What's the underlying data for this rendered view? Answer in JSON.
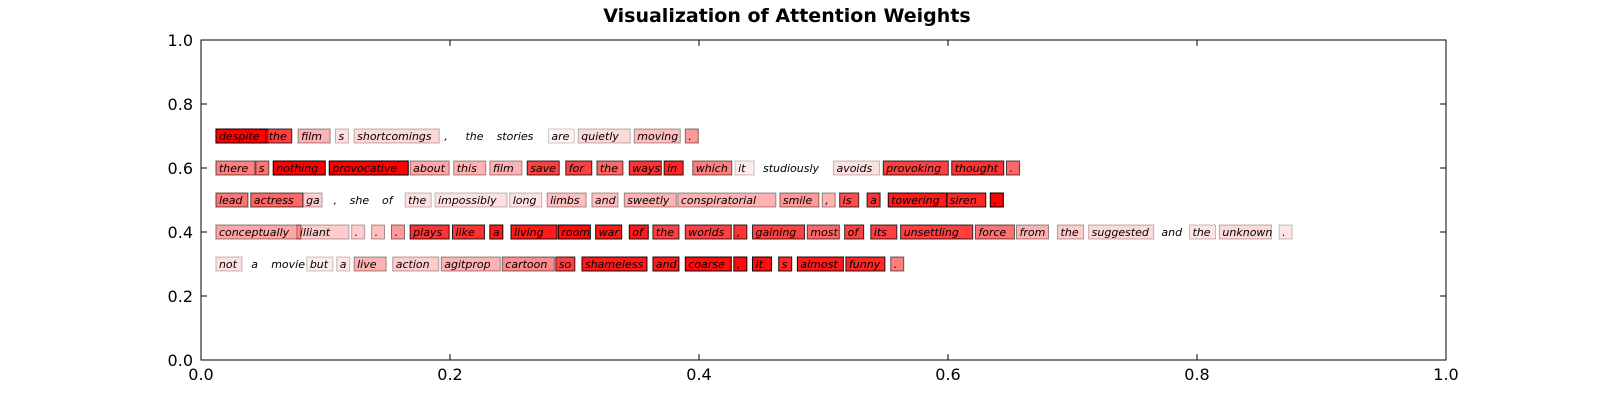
{
  "chart_data": {
    "type": "text-heatmap",
    "title": "Visualization of Attention Weights",
    "xlabel": "",
    "ylabel": "",
    "xlim": [
      0.0,
      1.0
    ],
    "ylim": [
      0.0,
      1.0
    ],
    "x_ticks": [
      "0.0",
      "0.2",
      "0.4",
      "0.6",
      "0.8",
      "1.0"
    ],
    "y_ticks": [
      "0.0",
      "0.2",
      "0.4",
      "0.6",
      "0.8",
      "1.0"
    ],
    "grid": false,
    "highlight_color": "#ff0000",
    "sentences": [
      {
        "y": 0.7,
        "tokens": [
          {
            "text": "despite",
            "x": 0.012,
            "weight": 1.0
          },
          {
            "text": "the",
            "x": 0.052,
            "weight": 0.75
          },
          {
            "text": "film",
            "x": 0.078,
            "weight": 0.3
          },
          {
            "text": "s",
            "x": 0.108,
            "weight": 0.12
          },
          {
            "text": "shortcomings",
            "x": 0.123,
            "weight": 0.15
          },
          {
            "text": ",",
            "x": 0.193,
            "weight": 0.0
          },
          {
            "text": "the",
            "x": 0.21,
            "weight": 0.0
          },
          {
            "text": "stories",
            "x": 0.235,
            "weight": 0.0
          },
          {
            "text": "are",
            "x": 0.279,
            "weight": 0.05
          },
          {
            "text": "quietly",
            "x": 0.303,
            "weight": 0.15
          },
          {
            "text": "moving",
            "x": 0.348,
            "weight": 0.25
          },
          {
            "text": ".",
            "x": 0.389,
            "weight": 0.4
          }
        ]
      },
      {
        "y": 0.6,
        "tokens": [
          {
            "text": "there",
            "x": 0.012,
            "weight": 0.5
          },
          {
            "text": "s",
            "x": 0.044,
            "weight": 0.55
          },
          {
            "text": "nothing",
            "x": 0.058,
            "weight": 1.0
          },
          {
            "text": "provocative",
            "x": 0.103,
            "weight": 1.0
          },
          {
            "text": "about",
            "x": 0.168,
            "weight": 0.35
          },
          {
            "text": "this",
            "x": 0.203,
            "weight": 0.3
          },
          {
            "text": "film",
            "x": 0.232,
            "weight": 0.3
          },
          {
            "text": "save",
            "x": 0.262,
            "weight": 0.75
          },
          {
            "text": "for",
            "x": 0.293,
            "weight": 0.75
          },
          {
            "text": "the",
            "x": 0.318,
            "weight": 0.6
          },
          {
            "text": "ways",
            "x": 0.344,
            "weight": 0.8
          },
          {
            "text": "in",
            "x": 0.372,
            "weight": 0.85
          },
          {
            "text": "which",
            "x": 0.395,
            "weight": 0.5
          },
          {
            "text": "it",
            "x": 0.429,
            "weight": 0.08
          },
          {
            "text": "studiously",
            "x": 0.449,
            "weight": 0.0
          },
          {
            "text": "avoids",
            "x": 0.508,
            "weight": 0.12
          },
          {
            "text": "provoking",
            "x": 0.548,
            "weight": 0.75
          },
          {
            "text": "thought",
            "x": 0.603,
            "weight": 0.8
          },
          {
            "text": ".",
            "x": 0.647,
            "weight": 0.6
          }
        ]
      },
      {
        "y": 0.5,
        "tokens": [
          {
            "text": "lead",
            "x": 0.012,
            "weight": 0.55
          },
          {
            "text": "actress",
            "x": 0.04,
            "weight": 0.6
          },
          {
            "text": "ga",
            "x": 0.082,
            "weight": 0.2
          },
          {
            "text": ",",
            "x": 0.104,
            "weight": 0.0
          },
          {
            "text": "she",
            "x": 0.117,
            "weight": 0.0
          },
          {
            "text": "of",
            "x": 0.143,
            "weight": 0.0
          },
          {
            "text": "the",
            "x": 0.164,
            "weight": 0.12
          },
          {
            "text": "impossibly",
            "x": 0.188,
            "weight": 0.12
          },
          {
            "text": "long",
            "x": 0.248,
            "weight": 0.12
          },
          {
            "text": "limbs",
            "x": 0.278,
            "weight": 0.25
          },
          {
            "text": "and",
            "x": 0.314,
            "weight": 0.25
          },
          {
            "text": "sweetly",
            "x": 0.34,
            "weight": 0.3
          },
          {
            "text": "conspiratorial",
            "x": 0.383,
            "weight": 0.3
          },
          {
            "text": "smile",
            "x": 0.465,
            "weight": 0.4
          },
          {
            "text": ",",
            "x": 0.499,
            "weight": 0.3
          },
          {
            "text": "is",
            "x": 0.513,
            "weight": 0.7
          },
          {
            "text": "a",
            "x": 0.535,
            "weight": 0.8
          },
          {
            "text": "towering",
            "x": 0.552,
            "weight": 0.9
          },
          {
            "text": "siren",
            "x": 0.599,
            "weight": 0.85
          },
          {
            "text": ".",
            "x": 0.634,
            "weight": 1.0
          }
        ]
      },
      {
        "y": 0.4,
        "tokens": [
          {
            "text": "conceptually",
            "x": 0.012,
            "weight": 0.35
          },
          {
            "text": "illiant",
            "x": 0.077,
            "weight": 0.2
          },
          {
            "text": ".",
            "x": 0.121,
            "weight": 0.2
          },
          {
            "text": ".",
            "x": 0.137,
            "weight": 0.25
          },
          {
            "text": ".",
            "x": 0.153,
            "weight": 0.4
          },
          {
            "text": "plays",
            "x": 0.168,
            "weight": 0.8
          },
          {
            "text": "like",
            "x": 0.202,
            "weight": 0.8
          },
          {
            "text": "a",
            "x": 0.232,
            "weight": 0.9
          },
          {
            "text": "living",
            "x": 0.249,
            "weight": 0.9
          },
          {
            "text": "room",
            "x": 0.287,
            "weight": 0.95
          },
          {
            "text": "war",
            "x": 0.317,
            "weight": 0.9
          },
          {
            "text": "of",
            "x": 0.344,
            "weight": 0.9
          },
          {
            "text": "the",
            "x": 0.363,
            "weight": 0.75
          },
          {
            "text": "worlds",
            "x": 0.389,
            "weight": 0.75
          },
          {
            "text": ",",
            "x": 0.428,
            "weight": 0.8
          },
          {
            "text": "gaining",
            "x": 0.443,
            "weight": 0.75
          },
          {
            "text": "most",
            "x": 0.487,
            "weight": 0.6
          },
          {
            "text": "of",
            "x": 0.517,
            "weight": 0.75
          },
          {
            "text": "its",
            "x": 0.538,
            "weight": 0.75
          },
          {
            "text": "unsettling",
            "x": 0.562,
            "weight": 0.75
          },
          {
            "text": "force",
            "x": 0.622,
            "weight": 0.55
          },
          {
            "text": "from",
            "x": 0.655,
            "weight": 0.3
          },
          {
            "text": "the",
            "x": 0.688,
            "weight": 0.2
          },
          {
            "text": "suggested",
            "x": 0.713,
            "weight": 0.15
          },
          {
            "text": "and",
            "x": 0.769,
            "weight": 0.0
          },
          {
            "text": "the",
            "x": 0.794,
            "weight": 0.1
          },
          {
            "text": "unknown",
            "x": 0.818,
            "weight": 0.15
          },
          {
            "text": ".",
            "x": 0.866,
            "weight": 0.1
          }
        ]
      },
      {
        "y": 0.3,
        "tokens": [
          {
            "text": "not",
            "x": 0.012,
            "weight": 0.12
          },
          {
            "text": "a",
            "x": 0.038,
            "weight": 0.0
          },
          {
            "text": "movie",
            "x": 0.054,
            "weight": 0.0
          },
          {
            "text": "but",
            "x": 0.085,
            "weight": 0.08
          },
          {
            "text": "a",
            "x": 0.109,
            "weight": 0.1
          },
          {
            "text": "live",
            "x": 0.123,
            "weight": 0.3
          },
          {
            "text": "action",
            "x": 0.154,
            "weight": 0.2
          },
          {
            "text": "agitprop",
            "x": 0.193,
            "weight": 0.3
          },
          {
            "text": "cartoon",
            "x": 0.242,
            "weight": 0.45
          },
          {
            "text": "so",
            "x": 0.285,
            "weight": 0.75
          },
          {
            "text": "shameless",
            "x": 0.306,
            "weight": 0.9
          },
          {
            "text": "and",
            "x": 0.363,
            "weight": 0.9
          },
          {
            "text": "coarse",
            "x": 0.389,
            "weight": 0.95
          },
          {
            "text": ",",
            "x": 0.428,
            "weight": 0.95
          },
          {
            "text": "it",
            "x": 0.443,
            "weight": 0.95
          },
          {
            "text": "s",
            "x": 0.464,
            "weight": 0.85
          },
          {
            "text": "almost",
            "x": 0.479,
            "weight": 0.9
          },
          {
            "text": "funny",
            "x": 0.518,
            "weight": 0.85
          },
          {
            "text": ".",
            "x": 0.554,
            "weight": 0.5
          }
        ]
      }
    ]
  }
}
